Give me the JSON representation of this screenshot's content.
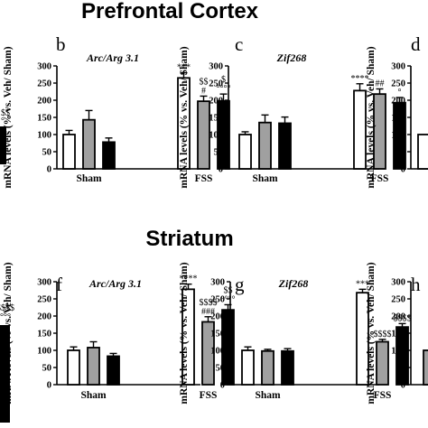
{
  "sections": [
    {
      "title": "Prefrontal Cortex"
    },
    {
      "title": "Striatum"
    }
  ],
  "colors": {
    "veh": "#ffffff",
    "grey": "#a0a0a0",
    "black": "#000000",
    "stroke": "#000000"
  },
  "fragments": [
    {
      "label": "$$",
      "label2": "°"
    },
    {
      "label": "$$$$",
      "label2": "°°°°"
    }
  ],
  "chart_data": [
    {
      "type": "bar",
      "panel": "b",
      "title": "Arc/Arg 3.1",
      "ylabel": "mRNA levels (% vs. Veh/ Sham)",
      "ylim": [
        0,
        300
      ],
      "yticks": [
        "0",
        "50",
        "100",
        "150",
        "200",
        "250",
        "300"
      ],
      "categories": [
        "Sham",
        "FSS"
      ],
      "series": [
        {
          "values": [
            100,
            265
          ],
          "errors": [
            12,
            15
          ],
          "fill": "#ffffff"
        },
        {
          "values": [
            143,
            197
          ],
          "errors": [
            27,
            15
          ],
          "fill": "#a0a0a0"
        },
        {
          "values": [
            78,
            198
          ],
          "errors": [
            12,
            20
          ],
          "fill": "#000000"
        }
      ],
      "annotations": [
        {
          "category": 1,
          "series": 0,
          "lines": [
            "***"
          ]
        },
        {
          "category": 1,
          "series": 1,
          "lines": [
            "$$",
            "#"
          ]
        },
        {
          "category": 1,
          "series": 2,
          "lines": [
            "$",
            "°°°°"
          ]
        }
      ]
    },
    {
      "type": "bar",
      "panel": "c",
      "title": "Zif268",
      "ylabel": "mRNA levels (% vs. Veh/ Sham)",
      "ylim": [
        0,
        300
      ],
      "yticks": [
        "0",
        "50",
        "100",
        "150",
        "200",
        "250",
        "300"
      ],
      "categories": [
        "Sham",
        "FSS"
      ],
      "series": [
        {
          "values": [
            100,
            228
          ],
          "errors": [
            8,
            20
          ],
          "fill": "#ffffff"
        },
        {
          "values": [
            135,
            218
          ],
          "errors": [
            22,
            15
          ],
          "fill": "#a0a0a0"
        },
        {
          "values": [
            133,
            193
          ],
          "errors": [
            18,
            15
          ],
          "fill": "#000000"
        }
      ],
      "annotations": [
        {
          "category": 1,
          "series": 0,
          "lines": [
            "****"
          ]
        },
        {
          "category": 1,
          "series": 1,
          "lines": [
            "##"
          ]
        },
        {
          "category": 1,
          "series": 2,
          "lines": [
            "°"
          ]
        }
      ]
    },
    {
      "type": "bar",
      "panel": "f",
      "title": "Arc/Arg 3.1",
      "ylabel": "mRNA levels (% vs. Veh/ Sham)",
      "ylim": [
        0,
        300
      ],
      "yticks": [
        "0",
        "50",
        "100",
        "150",
        "200",
        "250",
        "300"
      ],
      "categories": [
        "Sham",
        "FSS"
      ],
      "series": [
        {
          "values": [
            100,
            278
          ],
          "errors": [
            10,
            15
          ],
          "fill": "#ffffff"
        },
        {
          "values": [
            108,
            183
          ],
          "errors": [
            17,
            15
          ],
          "fill": "#a0a0a0"
        },
        {
          "values": [
            83,
            218
          ],
          "errors": [
            8,
            15
          ],
          "fill": "#000000"
        }
      ],
      "annotations": [
        {
          "category": 1,
          "series": 0,
          "lines": [
            "****"
          ]
        },
        {
          "category": 1,
          "series": 1,
          "lines": [
            "$$$$",
            "###"
          ]
        },
        {
          "category": 1,
          "series": 2,
          "lines": [
            "$$",
            "°°°°"
          ]
        }
      ]
    },
    {
      "type": "bar",
      "panel": "g",
      "title": "Zif268",
      "ylabel": "mRNA levels (% vs. Veh/ Sham)",
      "ylim": [
        0,
        300
      ],
      "yticks": [
        "0",
        "50",
        "100",
        "150",
        "200",
        "250",
        "300"
      ],
      "categories": [
        "Sham",
        "FSS"
      ],
      "series": [
        {
          "values": [
            100,
            268
          ],
          "errors": [
            10,
            10
          ],
          "fill": "#ffffff"
        },
        {
          "values": [
            98,
            125
          ],
          "errors": [
            5,
            7
          ],
          "fill": "#a0a0a0"
        },
        {
          "values": [
            98,
            168
          ],
          "errors": [
            7,
            10
          ],
          "fill": "#000000"
        }
      ],
      "annotations": [
        {
          "category": 1,
          "series": 0,
          "lines": [
            "***"
          ]
        },
        {
          "category": 1,
          "series": 1,
          "lines": [
            "$$$$"
          ]
        },
        {
          "category": 1,
          "series": 2,
          "lines": [
            "$$$$"
          ]
        }
      ]
    },
    {
      "type": "bar",
      "panel": "d",
      "ylabel": "mRNA levels (% vs. Veh/ Sham)",
      "ylim": [
        0,
        300
      ],
      "yticks": [
        "0",
        "50",
        "100",
        "150",
        "200",
        "250",
        "300"
      ],
      "series": [
        {
          "values": [
            100
          ],
          "fill": "#ffffff"
        }
      ]
    },
    {
      "type": "bar",
      "panel": "h",
      "ylabel": "mRNA levels (% vs. Veh/ Sham)",
      "ylim": [
        0,
        300
      ],
      "yticks": [
        "0",
        "50",
        "100",
        "150",
        "200",
        "250",
        "300"
      ],
      "series": [
        {
          "values": [
            100
          ],
          "fill": "#a0a0a0"
        }
      ]
    }
  ]
}
